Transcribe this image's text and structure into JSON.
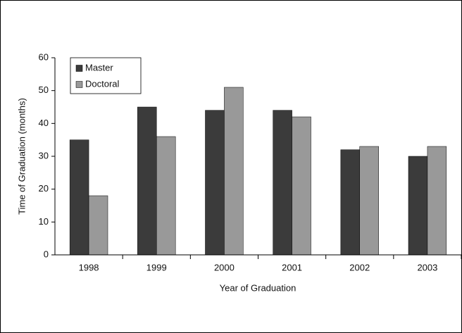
{
  "chart_data": {
    "type": "bar",
    "xlabel": "Year of Graduation",
    "ylabel": "Time of Graduation (months)",
    "categories": [
      "1998",
      "1999",
      "2000",
      "2001",
      "2002",
      "2003"
    ],
    "series": [
      {
        "name": "Master",
        "color": "#3b3b3b",
        "values": [
          35,
          45,
          44,
          44,
          32,
          30
        ]
      },
      {
        "name": "Doctoral",
        "color": "#999999",
        "values": [
          18,
          36,
          51,
          42,
          33,
          33
        ]
      }
    ],
    "ylim": [
      0,
      60
    ],
    "yticks": [
      0,
      10,
      20,
      30,
      40,
      50,
      60
    ],
    "legend": "upper left",
    "grid": false
  }
}
